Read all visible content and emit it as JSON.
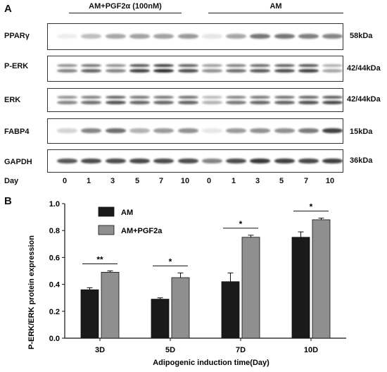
{
  "panel_a": {
    "letter": "A",
    "groups": [
      "AM+PGF2α (100nM)",
      "AM"
    ],
    "day_axis_label": "Day",
    "days": [
      "0",
      "1",
      "3",
      "5",
      "7",
      "10",
      "0",
      "1",
      "3",
      "5",
      "7",
      "10"
    ],
    "blots": [
      {
        "protein": "PPARγ",
        "size": "58kDa",
        "double_band": false,
        "intensity": [
          0.08,
          0.3,
          0.4,
          0.42,
          0.42,
          0.45,
          0.12,
          0.4,
          0.62,
          0.62,
          0.58,
          0.55
        ]
      },
      {
        "protein": "P-ERK",
        "size": "42/44kDa",
        "double_band": true,
        "intensity": [
          0.55,
          0.7,
          0.55,
          0.85,
          0.95,
          0.8,
          0.5,
          0.65,
          0.75,
          0.8,
          0.85,
          0.4
        ]
      },
      {
        "protein": "ERK",
        "size": "42/44kDa",
        "double_band": true,
        "intensity": [
          0.55,
          0.65,
          0.78,
          0.7,
          0.7,
          0.72,
          0.35,
          0.62,
          0.7,
          0.72,
          0.78,
          0.82
        ]
      },
      {
        "protein": "FABP4",
        "size": "15kDa",
        "double_band": false,
        "intensity": [
          0.2,
          0.55,
          0.65,
          0.35,
          0.45,
          0.5,
          0.1,
          0.45,
          0.5,
          0.5,
          0.6,
          0.85
        ]
      },
      {
        "protein": "GAPDH",
        "size": "36kDa",
        "double_band": false,
        "intensity": [
          0.75,
          0.8,
          0.8,
          0.82,
          0.8,
          0.8,
          0.55,
          0.8,
          0.9,
          0.85,
          0.82,
          0.85
        ]
      }
    ]
  },
  "panel_b": {
    "letter": "B",
    "chart_data": {
      "type": "bar",
      "categories": [
        "3D",
        "5D",
        "7D",
        "10D"
      ],
      "series": [
        {
          "name": "AM",
          "values": [
            0.36,
            0.29,
            0.42,
            0.75
          ],
          "errors": [
            0.015,
            0.01,
            0.065,
            0.04
          ],
          "color": "#1a1a1a"
        },
        {
          "name": "AM+PGF2a",
          "values": [
            0.49,
            0.45,
            0.75,
            0.88
          ],
          "errors": [
            0.01,
            0.035,
            0.015,
            0.012
          ],
          "color": "#8f8f8f"
        }
      ],
      "significance": [
        "**",
        "*",
        "*",
        "*"
      ],
      "xlabel": "Adipogenic induction time(Day)",
      "ylabel": "P-ERK/ERK protein expression",
      "ylim": [
        0.0,
        1.0
      ],
      "yticks": [
        "0.0",
        "0.2",
        "0.4",
        "0.6",
        "0.8",
        "1.0"
      ],
      "legend_position": "top-left",
      "grid": false
    }
  }
}
